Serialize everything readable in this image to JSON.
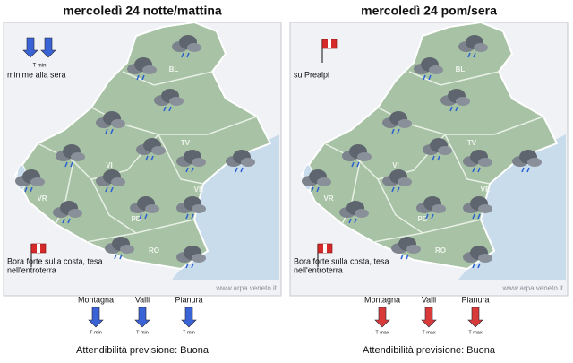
{
  "panels": [
    {
      "title": "mercoledì 24 notte/mattina",
      "map": {
        "top_note": {
          "label": "T min",
          "text": "minime alla sera"
        },
        "provinces": [
          "BL",
          "TV",
          "VI",
          "VR",
          "PD",
          "VE",
          "RO"
        ],
        "bottom_note": {
          "lines": [
            "Bora forte sulla costa, tesa",
            "nell'entroterra"
          ]
        },
        "credit": "www.arpa.veneto.it"
      },
      "legend": {
        "color": "#3a63d6",
        "zones": [
          {
            "label": "Montagna",
            "indicator": "T min"
          },
          {
            "label": "Valli",
            "indicator": "T min"
          },
          {
            "label": "Pianura",
            "indicator": "T min"
          }
        ]
      },
      "reliability": "Attendibilità previsione: Buona"
    },
    {
      "title": "mercoledì 24 pom/sera",
      "map": {
        "top_note": {
          "text": "su Prealpi"
        },
        "provinces": [
          "BL",
          "TV",
          "VI",
          "VR",
          "PD",
          "VE",
          "RO"
        ],
        "bottom_note": {
          "lines": [
            "Bora forte sulla costa, tesa",
            "nell'entroterra"
          ]
        },
        "credit": "www.arpa.veneto.it"
      },
      "legend": {
        "color": "#d83a3a",
        "zones": [
          {
            "label": "Montagna",
            "indicator": "T max"
          },
          {
            "label": "Valli",
            "indicator": "T max"
          },
          {
            "label": "Pianura",
            "indicator": "T max"
          }
        ]
      },
      "reliability": "Attendibilità previsione: Buona"
    }
  ]
}
